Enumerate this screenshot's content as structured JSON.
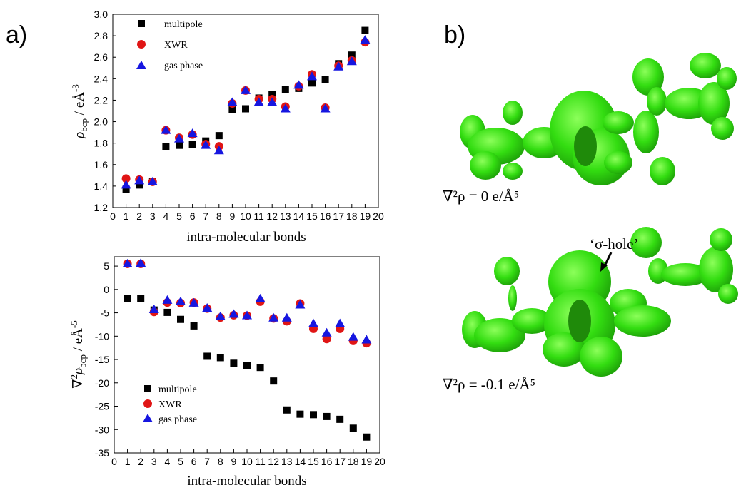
{
  "panel_labels": {
    "a": "a)",
    "b": "b)"
  },
  "legend": {
    "multipole": "multipole",
    "xwr": "XWR",
    "gas": "gas phase"
  },
  "colors": {
    "multipole": "#000000",
    "xwr": "#e01515",
    "gas": "#1616e0",
    "isosurface": "#33dd11",
    "isosurface_dark": "#1f8a0a"
  },
  "chart_data": [
    {
      "type": "scatter",
      "xlabel": "intra-molecular bonds",
      "ylabel": "ρbcp / eÅ-3",
      "xlim": [
        0,
        20
      ],
      "ylim": [
        1.2,
        3.0
      ],
      "x_ticks": [
        0,
        1,
        2,
        3,
        4,
        5,
        6,
        7,
        8,
        9,
        10,
        11,
        12,
        13,
        14,
        15,
        16,
        17,
        18,
        19,
        20
      ],
      "y_ticks": [
        "1.2",
        "1.4",
        "1.6",
        "1.8",
        "2.0",
        "2.2",
        "2.4",
        "2.6",
        "2.8",
        "3.0"
      ],
      "legend_position": "top-left",
      "x": [
        1,
        2,
        3,
        4,
        5,
        6,
        7,
        8,
        9,
        10,
        11,
        12,
        13,
        14,
        15,
        16,
        17,
        18,
        19
      ],
      "series": [
        {
          "name": "multipole",
          "marker": "square",
          "values": [
            1.37,
            1.41,
            1.44,
            1.77,
            1.78,
            1.79,
            1.82,
            1.87,
            2.11,
            2.12,
            2.22,
            2.25,
            2.3,
            2.31,
            2.36,
            2.39,
            2.54,
            2.62,
            2.85
          ]
        },
        {
          "name": "XWR",
          "marker": "circle",
          "values": [
            1.47,
            1.46,
            1.44,
            1.92,
            1.85,
            1.88,
            1.79,
            1.77,
            2.17,
            2.29,
            2.21,
            2.21,
            2.14,
            2.33,
            2.44,
            2.13,
            2.52,
            2.57,
            2.74
          ]
        },
        {
          "name": "gas phase",
          "marker": "triangle",
          "values": [
            1.41,
            1.45,
            1.44,
            1.92,
            1.84,
            1.89,
            1.78,
            1.73,
            2.18,
            2.29,
            2.18,
            2.18,
            2.12,
            2.34,
            2.42,
            2.12,
            2.51,
            2.56,
            2.76
          ]
        }
      ]
    },
    {
      "type": "scatter",
      "xlabel": "intra-molecular bonds",
      "ylabel": "∇2ρbcp / eÅ-5",
      "xlim": [
        0,
        20
      ],
      "ylim": [
        -35,
        7
      ],
      "x_ticks": [
        0,
        1,
        2,
        3,
        4,
        5,
        6,
        7,
        8,
        9,
        10,
        11,
        12,
        13,
        14,
        15,
        16,
        17,
        18,
        19,
        20
      ],
      "y_ticks": [
        "5",
        "0",
        "-5",
        "-10",
        "-15",
        "-20",
        "-25",
        "-30",
        "-35"
      ],
      "legend_position": "bottom-left",
      "x": [
        1,
        2,
        3,
        4,
        5,
        6,
        7,
        8,
        9,
        10,
        11,
        12,
        13,
        14,
        15,
        16,
        17,
        18,
        19
      ],
      "series": [
        {
          "name": "multipole",
          "marker": "square",
          "values": [
            -1.9,
            -2.0,
            -4.4,
            -4.9,
            -6.4,
            -7.8,
            -14.3,
            -14.6,
            -15.8,
            -16.3,
            -16.7,
            -19.6,
            -25.8,
            -26.7,
            -26.8,
            -27.2,
            -27.8,
            -29.7,
            -31.6
          ]
        },
        {
          "name": "XWR",
          "marker": "circle",
          "values": [
            5.5,
            5.5,
            -4.8,
            -2.8,
            -2.9,
            -2.8,
            -4.1,
            -6.0,
            -5.5,
            -5.6,
            -2.6,
            -6.2,
            -6.8,
            -3.0,
            -8.4,
            -10.6,
            -8.4,
            -11.0,
            -11.5
          ]
        },
        {
          "name": "gas phase",
          "marker": "triangle",
          "values": [
            5.5,
            5.6,
            -4.3,
            -2.3,
            -2.6,
            -2.9,
            -4.0,
            -5.8,
            -5.3,
            -5.6,
            -2.0,
            -6.1,
            -6.1,
            -3.3,
            -7.3,
            -9.3,
            -7.3,
            -10.2,
            -10.8
          ]
        }
      ]
    }
  ],
  "figure_b": {
    "caption_top": "∇²ρ = 0 e/Å⁵",
    "caption_bottom": "∇²ρ = -0.1 e/Å⁵",
    "annotation": "‘σ-hole’"
  }
}
